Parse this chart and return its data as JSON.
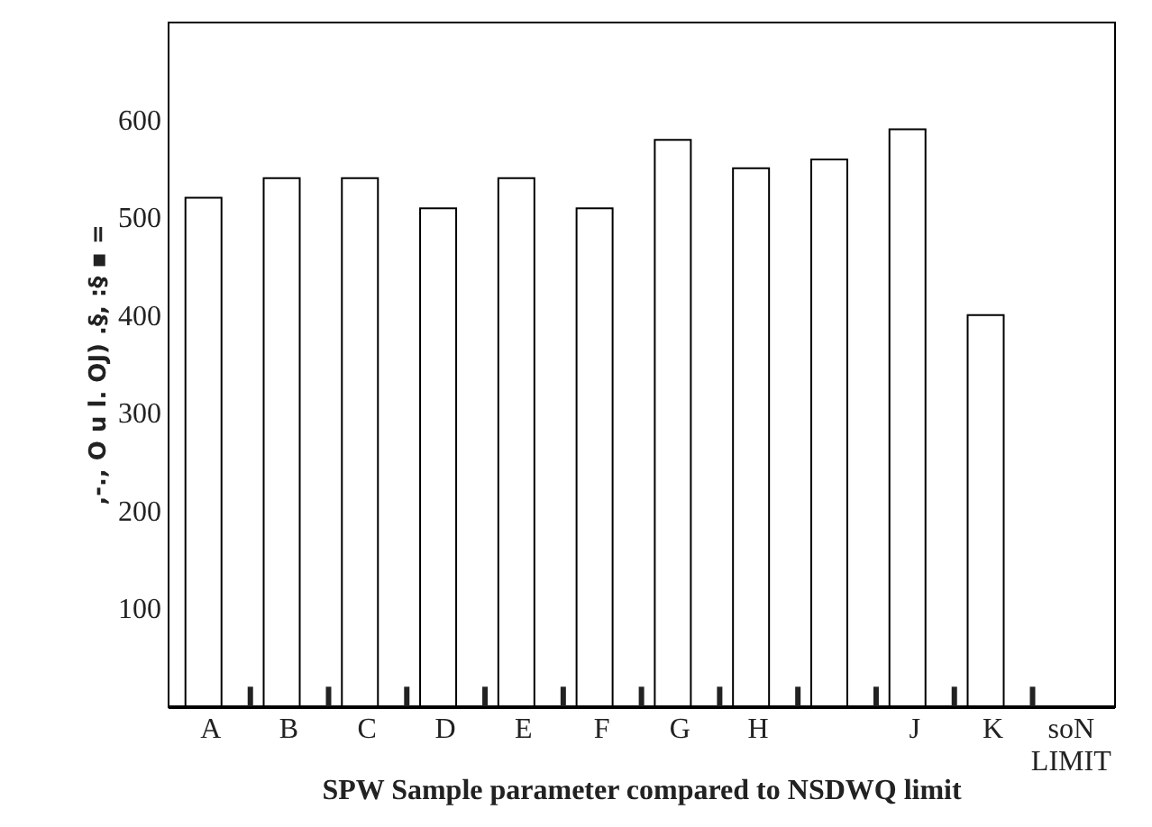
{
  "chart_data": {
    "type": "bar",
    "xlabel": "SPW Sample parameter compared to NSDWQ limit",
    "ylabel": ",-., O u l. OJ) .§, :§ ▪ =",
    "categories": [
      "A",
      "B",
      "C",
      "D",
      "E",
      "F",
      "G",
      "H",
      null,
      "J",
      "K",
      "soN LIMIT"
    ],
    "series": [
      {
        "color": "#ffffff",
        "values": [
          520,
          540,
          540,
          509,
          540,
          509,
          579,
          550,
          559,
          590,
          400,
          null
        ]
      },
      {
        "color": "#222222",
        "values": [
          20,
          20,
          20,
          20,
          20,
          20,
          20,
          20,
          20,
          20,
          20,
          null
        ]
      }
    ],
    "ylim": [
      0,
      700
    ],
    "yticks": [
      100,
      200,
      300,
      400,
      500,
      600
    ],
    "grid": false
  }
}
